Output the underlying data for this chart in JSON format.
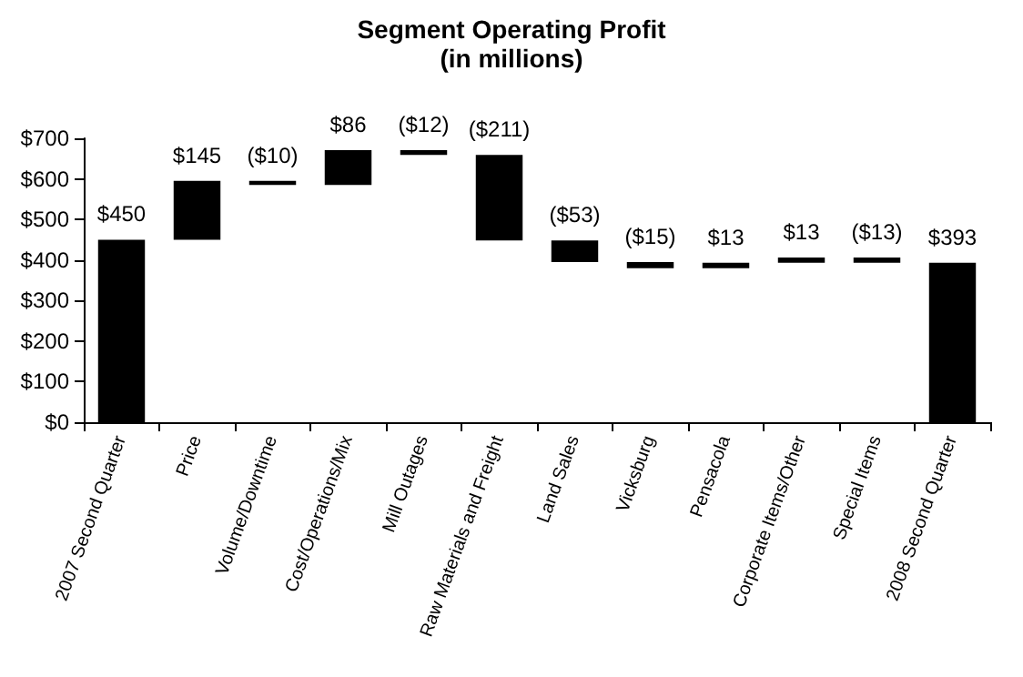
{
  "chart_data": {
    "type": "bar",
    "title": "Segment Operating Profit",
    "subtitle": "(in millions)",
    "categories": [
      "2007 Second Quarter",
      "Price",
      "Volume/Downtime",
      "Cost/Operations/Mix",
      "Mill Outages",
      "Raw Materials and Freight",
      "Land Sales",
      "Vicksburg",
      "Pensacola",
      "Corporate Items/Other",
      "Special Items",
      "2008 Second Quarter"
    ],
    "values": [
      450,
      145,
      -10,
      86,
      -12,
      -211,
      -53,
      -15,
      13,
      13,
      -13,
      393
    ],
    "base": [
      0,
      450,
      595,
      585,
      671,
      659,
      448,
      395,
      380,
      393,
      406,
      0
    ],
    "value_labels": [
      "$450",
      "$145",
      "($10)",
      "$86",
      "($12)",
      "($211)",
      "($53)",
      "($15)",
      "$13",
      "$13",
      "($13)",
      "$393"
    ],
    "color": "#000000",
    "ylim": [
      0,
      700
    ],
    "yticks": [
      {
        "value": 0,
        "label": "$0"
      },
      {
        "value": 100,
        "label": "$100"
      },
      {
        "value": 200,
        "label": "$200"
      },
      {
        "value": 300,
        "label": "$300"
      },
      {
        "value": 400,
        "label": "$400"
      },
      {
        "value": 500,
        "label": "$500"
      },
      {
        "value": 600,
        "label": "$600"
      },
      {
        "value": 700,
        "label": "$700"
      }
    ],
    "grid": false
  }
}
